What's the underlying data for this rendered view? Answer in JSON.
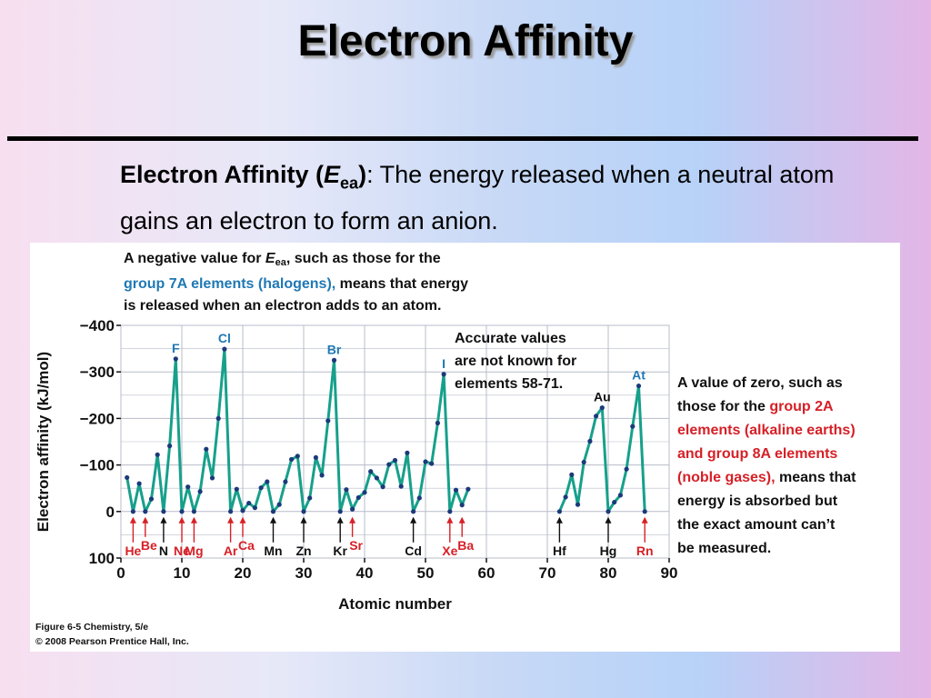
{
  "slide": {
    "title": "Electron Affinity",
    "definition": {
      "term": "Electron Affinity (",
      "symbol": "E",
      "symbol_sub": "ea",
      "term_close": ")",
      "text": ": The energy released when a neutral atom gains an electron to form an anion."
    }
  },
  "figure": {
    "note_top": {
      "l1_a": "A negative value for ",
      "l1_sym": "E",
      "l1_sub": "ea",
      "l1_b": ", such as those for the",
      "l2_hl": "group 7A elements (halogens),",
      "l2_b": " means that energy",
      "l3": "is released when an electron adds to an atom."
    },
    "note_accurate": [
      "Accurate values",
      "are not known for",
      "elements 58-71."
    ],
    "note_right": {
      "l1": "A value of zero, such as",
      "l2_a": "those for the ",
      "l2_red": "group 2A",
      "l3_red": "elements (alkaline earths)",
      "l4_red": "and group  8A elements",
      "l5_red": "(noble gases),",
      "l5_b": " means that",
      "l6": "energy is absorbed but",
      "l7": "the exact amount can’t",
      "l8": "be measured."
    },
    "caption": [
      "Figure 6-5  Chemistry, 5/e",
      "© 2008 Pearson Prentice Hall, Inc."
    ],
    "colors": {
      "line": "#17a08b",
      "point": "#1b3a7a",
      "blue_label": "#1f78b4",
      "red_label": "#d62027",
      "grid": "#b8bcc8"
    }
  },
  "chart_data": {
    "type": "line",
    "xlabel": "Atomic number",
    "ylabel": "Electron affinity (kJ/mol)",
    "xlim": [
      0,
      90
    ],
    "ylim": [
      100,
      -400
    ],
    "xticks": [
      0,
      10,
      20,
      30,
      40,
      50,
      60,
      70,
      80,
      90
    ],
    "xtick_labels": [
      "0",
      "10",
      "20",
      "30",
      "40",
      "50",
      "60",
      "70",
      "80",
      "90"
    ],
    "yticks": [
      -400,
      -300,
      -200,
      -100,
      0,
      100
    ],
    "ytick_labels": [
      "−400",
      "−300",
      "−200",
      "−100",
      "0",
      "100"
    ],
    "grid": true,
    "series": [
      {
        "points": [
          [
            1,
            -73
          ],
          [
            2,
            0
          ],
          [
            3,
            -60
          ],
          [
            4,
            0
          ],
          [
            5,
            -27
          ],
          [
            6,
            -122
          ],
          [
            7,
            0
          ],
          [
            8,
            -141
          ],
          [
            9,
            -328
          ],
          [
            10,
            0
          ],
          [
            11,
            -53
          ],
          [
            12,
            0
          ],
          [
            13,
            -43
          ],
          [
            14,
            -134
          ],
          [
            15,
            -72
          ],
          [
            16,
            -200
          ],
          [
            17,
            -349
          ],
          [
            18,
            0
          ],
          [
            19,
            -48
          ],
          [
            20,
            -2
          ],
          [
            21,
            -18
          ],
          [
            22,
            -8
          ],
          [
            23,
            -51
          ],
          [
            24,
            -64
          ],
          [
            25,
            0
          ],
          [
            26,
            -15
          ],
          [
            27,
            -64
          ],
          [
            28,
            -112
          ],
          [
            29,
            -119
          ],
          [
            30,
            0
          ],
          [
            31,
            -29
          ],
          [
            32,
            -116
          ],
          [
            33,
            -78
          ],
          [
            34,
            -195
          ],
          [
            35,
            -325
          ],
          [
            36,
            0
          ],
          [
            37,
            -47
          ],
          [
            38,
            -5
          ],
          [
            39,
            -30
          ],
          [
            40,
            -41
          ],
          [
            41,
            -86
          ],
          [
            42,
            -72
          ],
          [
            43,
            -53
          ],
          [
            44,
            -101
          ],
          [
            45,
            -110
          ],
          [
            46,
            -54
          ],
          [
            47,
            -126
          ],
          [
            48,
            0
          ],
          [
            49,
            -29
          ],
          [
            50,
            -107
          ],
          [
            51,
            -103
          ],
          [
            52,
            -190
          ],
          [
            53,
            -295
          ],
          [
            54,
            0
          ],
          [
            55,
            -46
          ],
          [
            56,
            -14
          ],
          [
            57,
            -48
          ]
        ]
      },
      {
        "points": [
          [
            72,
            0
          ],
          [
            73,
            -31
          ],
          [
            74,
            -79
          ],
          [
            75,
            -15
          ],
          [
            76,
            -106
          ],
          [
            77,
            -151
          ],
          [
            78,
            -205
          ],
          [
            79,
            -223
          ],
          [
            80,
            0
          ],
          [
            81,
            -20
          ],
          [
            82,
            -35
          ],
          [
            83,
            -91
          ],
          [
            84,
            -183
          ],
          [
            85,
            -270
          ],
          [
            86,
            0
          ]
        ]
      }
    ],
    "annotations": [
      {
        "label": "F",
        "x": 9,
        "y": -328,
        "color": "blue"
      },
      {
        "label": "Cl",
        "x": 17,
        "y": -349,
        "color": "blue"
      },
      {
        "label": "Br",
        "x": 35,
        "y": -325,
        "color": "blue"
      },
      {
        "label": "I",
        "x": 53,
        "y": -295,
        "color": "blue"
      },
      {
        "label": "At",
        "x": 85,
        "y": -270,
        "color": "blue"
      },
      {
        "label": "Au",
        "x": 79,
        "y": -223,
        "color": "black"
      }
    ],
    "zero_markers": [
      {
        "label": "He",
        "x": 2,
        "color": "red"
      },
      {
        "label": "Be",
        "x": 4,
        "color": "red"
      },
      {
        "label": "N",
        "x": 7,
        "color": "black"
      },
      {
        "label": "Ne",
        "x": 10,
        "color": "red"
      },
      {
        "label": "Mg",
        "x": 12,
        "color": "red"
      },
      {
        "label": "Ar",
        "x": 18,
        "color": "red"
      },
      {
        "label": "Ca",
        "x": 20,
        "color": "red"
      },
      {
        "label": "Mn",
        "x": 25,
        "color": "black"
      },
      {
        "label": "Zn",
        "x": 30,
        "color": "black"
      },
      {
        "label": "Kr",
        "x": 36,
        "color": "black"
      },
      {
        "label": "Sr",
        "x": 38,
        "color": "red"
      },
      {
        "label": "Cd",
        "x": 48,
        "color": "black"
      },
      {
        "label": "Xe",
        "x": 54,
        "color": "red"
      },
      {
        "label": "Ba",
        "x": 56,
        "color": "red"
      },
      {
        "label": "Hf",
        "x": 72,
        "color": "black"
      },
      {
        "label": "Hg",
        "x": 80,
        "color": "black"
      },
      {
        "label": "Rn",
        "x": 86,
        "color": "red"
      }
    ]
  }
}
